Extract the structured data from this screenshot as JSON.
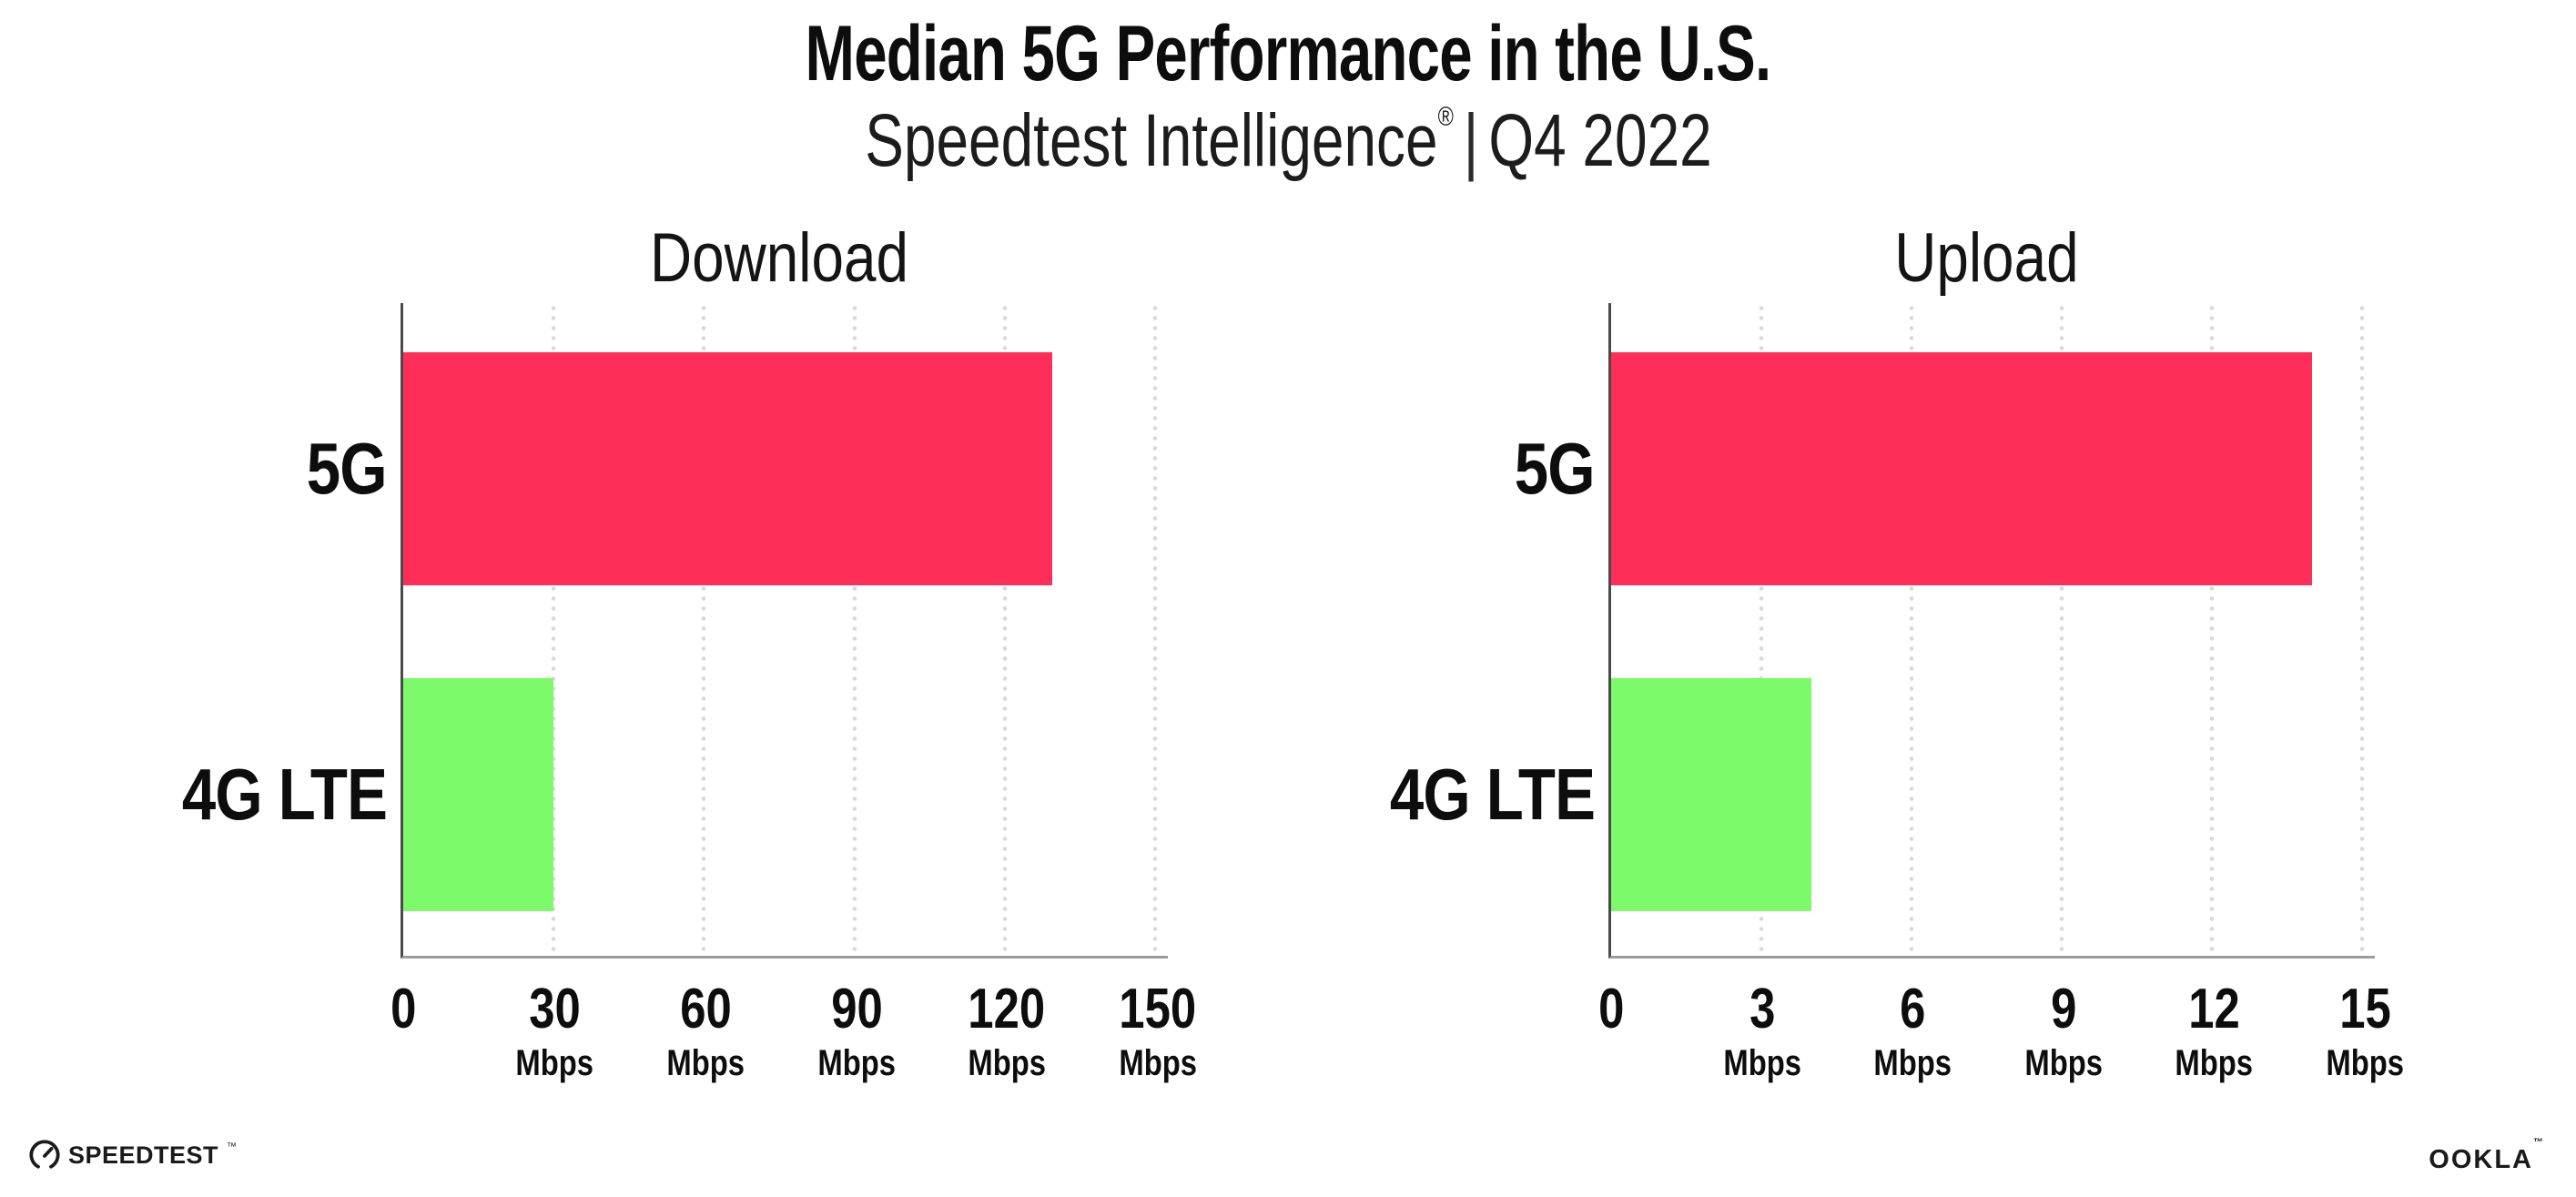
{
  "header": {
    "title": "Median 5G Performance in the U.S.",
    "subtitle_brand": "Speedtest Intelligence",
    "subtitle_mark": "®",
    "subtitle_sep": "|",
    "subtitle_period": "Q4 2022"
  },
  "colors": {
    "bar_5g": "#FF2E58",
    "bar_4g_lte": "#7DFA69",
    "gridline_dot": "#D9D9E4",
    "x_axis_line": "#9B9B9B",
    "y_axis_line": "#4A4A4A",
    "text": "#0D0D0D"
  },
  "chart_data": [
    {
      "type": "bar",
      "orientation": "horizontal",
      "title": "Download",
      "categories": [
        "5G",
        "4G LTE"
      ],
      "values": [
        129.5,
        30
      ],
      "unit": "Mbps",
      "xlim": [
        0,
        150
      ],
      "ticks": [
        0,
        30,
        60,
        90,
        120,
        150
      ],
      "tick_labels": [
        "0",
        "30",
        "60",
        "90",
        "120",
        "150"
      ],
      "grid": "dotted-vertical-at-ticks",
      "legend": "none",
      "bar_colors": [
        "#FF2E58",
        "#7DFA69"
      ]
    },
    {
      "type": "bar",
      "orientation": "horizontal",
      "title": "Upload",
      "categories": [
        "5G",
        "4G LTE"
      ],
      "values": [
        14,
        4
      ],
      "unit": "Mbps",
      "xlim": [
        0,
        15
      ],
      "ticks": [
        0,
        3,
        6,
        9,
        12,
        15
      ],
      "tick_labels": [
        "0",
        "3",
        "6",
        "9",
        "12",
        "15"
      ],
      "grid": "dotted-vertical-at-ticks",
      "legend": "none",
      "bar_colors": [
        "#FF2E58",
        "#7DFA69"
      ]
    }
  ],
  "footer": {
    "speedtest_label": "SPEEDTEST",
    "speedtest_mark": "™",
    "ookla_label": "OOKLA",
    "ookla_mark": "™"
  }
}
